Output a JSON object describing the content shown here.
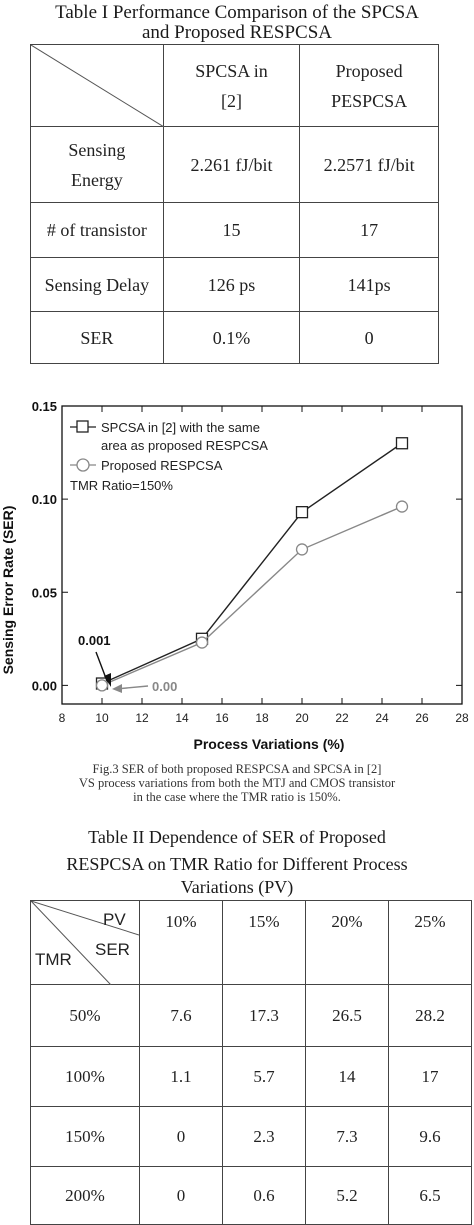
{
  "table1": {
    "title_line1": "Table I Performance Comparison of the SPCSA",
    "title_line2": "and Proposed RESPCSA",
    "col1_line1": "SPCSA in",
    "col1_line2": "[2]",
    "col2_line1": "Proposed",
    "col2_line2": "PESPCSA",
    "rows": [
      {
        "label_line1": "Sensing",
        "label_line2": "Energy",
        "a": "2.261 fJ/bit",
        "b": "2.2571 fJ/bit"
      },
      {
        "label_line1": "# of transistor",
        "label_line2": "",
        "a": "15",
        "b": "17"
      },
      {
        "label_line1": "Sensing Delay",
        "label_line2": "",
        "a": "126 ps",
        "b": "141ps"
      },
      {
        "label_line1": "SER",
        "label_line2": "",
        "a": "0.1%",
        "b": "0"
      }
    ]
  },
  "chart_data": {
    "type": "line",
    "xlabel": "Process Variations (%)",
    "ylabel": "Sensing Error Rate (SER)",
    "xlim": [
      8,
      28
    ],
    "ylim": [
      -0.01,
      0.15
    ],
    "x_ticks": [
      "8",
      "10",
      "12",
      "14",
      "16",
      "18",
      "20",
      "22",
      "24",
      "26",
      "28"
    ],
    "y_ticks": [
      "0.00",
      "0.05",
      "0.10",
      "0.15"
    ],
    "legend_line1": "SPCSA in  [2] with the same",
    "legend_line2": "area as proposed RESPCSA",
    "legend_series2": "Proposed RESPCSA",
    "legend_note": "TMR Ratio=150%",
    "legend_position": "top-left",
    "grid": false,
    "annotations": {
      "a1": "0.001",
      "a2": "0.00"
    },
    "series": [
      {
        "name": "SPCSA in [2] with the same area as proposed RESPCSA",
        "marker": "square",
        "color": "#222222",
        "x": [
          10,
          15,
          20,
          25
        ],
        "y": [
          0.001,
          0.025,
          0.093,
          0.13
        ]
      },
      {
        "name": "Proposed RESPCSA",
        "marker": "circle",
        "color": "#888888",
        "x": [
          10,
          15,
          20,
          25
        ],
        "y": [
          0.0,
          0.023,
          0.073,
          0.096
        ]
      }
    ]
  },
  "caption": {
    "line1": "Fig.3 SER of both proposed RESPCSA and SPCSA in [2]",
    "line2": "VS process variations from both the MTJ and CMOS transistor",
    "line3": "in the case where the TMR ratio is 150%."
  },
  "table2": {
    "title_line1": "Table II Dependence of SER of Proposed",
    "title_line2": "RESPCSA on TMR Ratio for Different Process",
    "title_line3": "Variations (PV)",
    "corner_pv": "PV",
    "corner_ser": "SER",
    "corner_tmr": "TMR",
    "headers": [
      "10%",
      "15%",
      "20%",
      "25%"
    ],
    "rows": [
      {
        "tmr": "50%",
        "values": [
          "7.6",
          "17.3",
          "26.5",
          "28.2"
        ]
      },
      {
        "tmr": "100%",
        "values": [
          "1.1",
          "5.7",
          "14",
          "17"
        ]
      },
      {
        "tmr": "150%",
        "values": [
          "0",
          "2.3",
          "7.3",
          "9.6"
        ]
      },
      {
        "tmr": "200%",
        "values": [
          "0",
          "0.6",
          "5.2",
          "6.5"
        ]
      }
    ]
  }
}
